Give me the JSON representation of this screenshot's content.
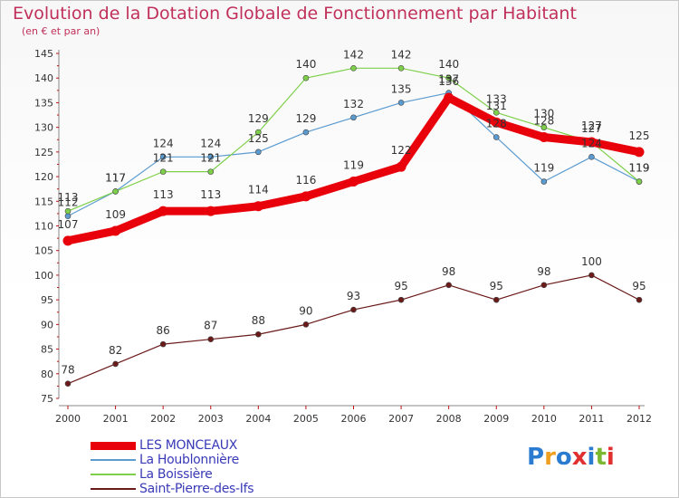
{
  "title": "Evolution de la Dotation Globale de Fonctionnement par Habitant",
  "subtitle": "(en € et par an)",
  "logo": {
    "text": "Proxiti",
    "colors": [
      "#2b7bd0",
      "#f0a020",
      "#2b7bd0",
      "#e03030",
      "#2b7bd0",
      "#7ab830",
      "#e03030"
    ]
  },
  "chart_data": {
    "type": "line",
    "x": [
      2000,
      2001,
      2002,
      2003,
      2004,
      2005,
      2006,
      2007,
      2008,
      2009,
      2010,
      2011,
      2012
    ],
    "ylim": [
      75,
      145
    ],
    "yticks": [
      75,
      80,
      85,
      90,
      95,
      100,
      105,
      110,
      115,
      120,
      125,
      130,
      135,
      140,
      145
    ],
    "grid": false,
    "legend_position": "bottom-left",
    "series": [
      {
        "name": "LES MONCEAUX",
        "color": "#e8000b",
        "values": [
          107,
          109,
          113,
          113,
          114,
          116,
          119,
          122,
          136,
          131,
          128,
          127,
          125
        ],
        "labels": [
          "107",
          "109",
          "113",
          "113",
          "114",
          "116",
          "119",
          "122",
          "136",
          "131",
          "128",
          "127",
          "125"
        ]
      },
      {
        "name": "La Houblonnière",
        "color": "#5b9bd0",
        "values": [
          112,
          117,
          124,
          124,
          125,
          129,
          132,
          135,
          137,
          128,
          119,
          124,
          119
        ],
        "labels": [
          "112",
          "117",
          "124",
          "124",
          "125",
          "129",
          "132",
          "135",
          "137",
          "128",
          "119",
          "124",
          "119"
        ]
      },
      {
        "name": "La Boissière",
        "color": "#7ed04a",
        "values": [
          113,
          117,
          121,
          121,
          129,
          140,
          142,
          142,
          140,
          133,
          130,
          127,
          119
        ],
        "labels": [
          "113",
          "117",
          "121",
          "121",
          "129",
          "140",
          "142",
          "142",
          "140",
          "133",
          "130",
          "127",
          "119"
        ]
      },
      {
        "name": "Saint-Pierre-des-Ifs",
        "color": "#6b1a1a",
        "values": [
          78,
          82,
          86,
          87,
          88,
          90,
          93,
          95,
          98,
          95,
          98,
          100,
          95
        ],
        "labels": [
          "78",
          "82",
          "86",
          "87",
          "88",
          "90",
          "93",
          "95",
          "98",
          "95",
          "98",
          "100",
          "95"
        ]
      }
    ]
  }
}
